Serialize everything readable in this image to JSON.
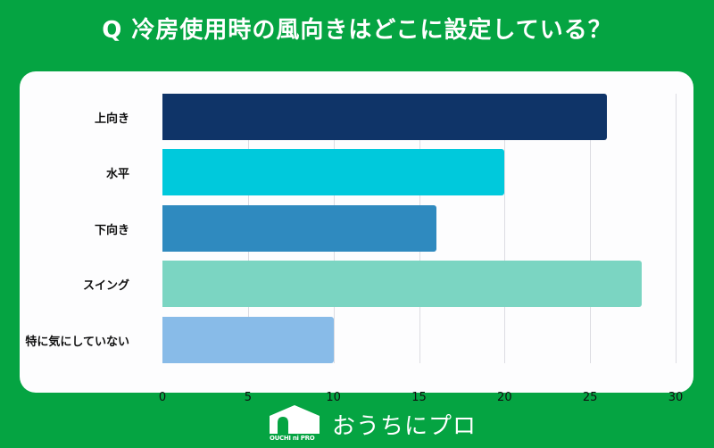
{
  "title": "Q 冷房使用時の風向きはどこに設定している？",
  "footer": {
    "brand_name": "おうちにプロ",
    "logo_small_text": "OUCHI ni PRO",
    "logo_icon": "house-icon"
  },
  "colors": {
    "background": "#05a442",
    "panel": "#fdfdfe",
    "bars": [
      "#0f3468",
      "#00c9dc",
      "#2f8abf",
      "#7bd5c2",
      "#88bbe8"
    ]
  },
  "chart_data": {
    "type": "bar",
    "orientation": "horizontal",
    "title": "Q 冷房使用時の風向きはどこに設定している？",
    "categories": [
      "上向き",
      "水平",
      "下向き",
      "スイング",
      "特に気にしていない"
    ],
    "values": [
      26,
      20,
      16,
      28,
      10
    ],
    "xlabel": "",
    "ylabel": "",
    "xlim": [
      0,
      30
    ],
    "xticks": [
      "0",
      "5",
      "10",
      "15",
      "20",
      "25",
      "30"
    ],
    "grid": "vertical",
    "legend": "none"
  }
}
